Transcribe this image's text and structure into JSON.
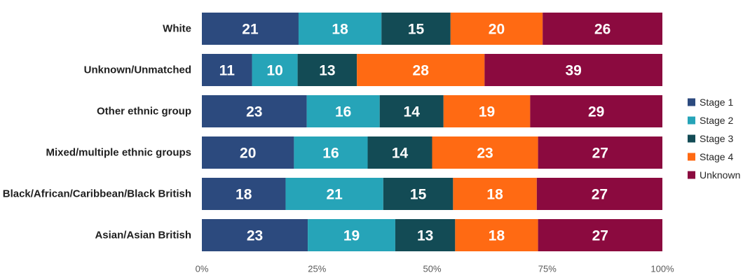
{
  "chart_data": {
    "type": "bar",
    "orientation": "horizontal",
    "stacked": "percent",
    "title": "",
    "xlabel": "",
    "ylabel": "",
    "xlim": [
      0,
      100
    ],
    "grid": false,
    "legend_position": "right",
    "categories": [
      "White",
      "Unknown/Unmatched",
      "Other ethnic group",
      "Mixed/multiple ethnic groups",
      "Black/African/Caribbean/Black British",
      "Asian/Asian British"
    ],
    "series": [
      {
        "name": "Stage 1",
        "color": "#2C4A7E",
        "values": [
          21,
          11,
          23,
          20,
          18,
          23
        ],
        "labels": [
          "21",
          "11",
          "23",
          "20",
          "18",
          "23"
        ]
      },
      {
        "name": "Stage 2",
        "color": "#26A4B8",
        "values": [
          18,
          10,
          16,
          16,
          21,
          19
        ],
        "labels": [
          "18",
          "10",
          "16",
          "16",
          "21",
          "19"
        ]
      },
      {
        "name": "Stage 3",
        "color": "#134B55",
        "values": [
          15,
          13,
          14,
          14,
          15,
          13
        ],
        "labels": [
          "15",
          "13",
          "14",
          "14",
          "15",
          "13"
        ]
      },
      {
        "name": "Stage 4",
        "color": "#FF6A13",
        "values": [
          20,
          28,
          19,
          23,
          18,
          18
        ],
        "labels": [
          "20",
          "28",
          "19",
          "23",
          "18",
          "18"
        ]
      },
      {
        "name": "Unknown",
        "color": "#8B0A3F",
        "values": [
          26,
          39,
          29,
          27,
          27,
          27
        ],
        "labels": [
          "26",
          "39",
          "29",
          "27",
          "27",
          "27"
        ]
      }
    ],
    "x_ticks": [
      0,
      25,
      50,
      75,
      100
    ],
    "x_tick_labels": [
      "0%",
      "25%",
      "50%",
      "75%",
      "100%"
    ]
  }
}
